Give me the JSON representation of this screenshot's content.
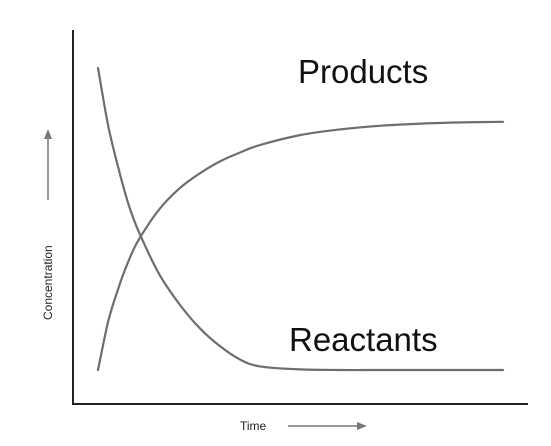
{
  "chart_data": {
    "type": "line",
    "xlabel": "Time",
    "ylabel": "Concentration",
    "xlim": [
      0,
      10
    ],
    "ylim": [
      0,
      10
    ],
    "grid": false,
    "legend": "inline",
    "series": [
      {
        "name": "Products",
        "color": "#6e6e6e",
        "x": [
          0.0,
          0.25,
          0.5,
          0.75,
          1.0,
          1.5,
          2.0,
          2.5,
          3.0,
          3.5,
          4.0,
          5.0,
          6.0,
          7.0,
          8.0,
          9.0,
          10.0
        ],
        "y": [
          0.0,
          1.6,
          2.7,
          3.6,
          4.3,
          5.3,
          6.0,
          6.5,
          6.9,
          7.2,
          7.45,
          7.78,
          7.97,
          8.09,
          8.16,
          8.2,
          8.22
        ]
      },
      {
        "name": "Reactants",
        "color": "#6e6e6e",
        "x": [
          0.0,
          0.25,
          0.5,
          0.75,
          1.0,
          1.5,
          2.0,
          2.5,
          3.0,
          3.5,
          4.0,
          5.0,
          6.0,
          7.0,
          8.0,
          9.0,
          10.0
        ],
        "y": [
          10.0,
          8.1,
          6.7,
          5.5,
          4.6,
          3.2,
          2.2,
          1.4,
          0.8,
          0.35,
          0.12,
          0.02,
          0.0,
          0.0,
          0.0,
          0.0,
          0.0
        ]
      }
    ]
  }
}
